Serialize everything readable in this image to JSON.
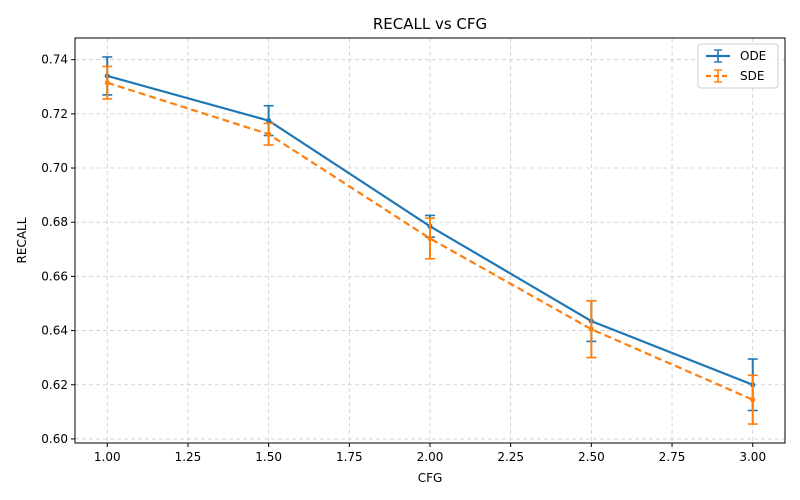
{
  "chart_data": {
    "type": "line",
    "title": "RECALL vs CFG",
    "xlabel": "CFG",
    "ylabel": "RECALL",
    "xlim": [
      0.9,
      3.1
    ],
    "ylim": [
      0.5985,
      0.748
    ],
    "xticks": [
      1.0,
      1.25,
      1.5,
      1.75,
      2.0,
      2.25,
      2.5,
      2.75,
      3.0
    ],
    "xtick_labels": [
      "1.00",
      "1.25",
      "1.50",
      "1.75",
      "2.00",
      "2.25",
      "2.50",
      "2.75",
      "3.00"
    ],
    "yticks": [
      0.6,
      0.62,
      0.64,
      0.66,
      0.68,
      0.7,
      0.72,
      0.74
    ],
    "ytick_labels": [
      "0.60",
      "0.62",
      "0.64",
      "0.66",
      "0.68",
      "0.70",
      "0.72",
      "0.74"
    ],
    "grid": true,
    "legend_position": "top-right",
    "x": [
      1.0,
      1.5,
      2.0,
      2.5,
      3.0
    ],
    "series": [
      {
        "name": "ODE",
        "color": "#1f77b4",
        "linestyle": "solid",
        "values": [
          0.734,
          0.7175,
          0.6785,
          0.6435,
          0.62
        ],
        "errors": [
          0.007,
          0.0055,
          0.004,
          0.0075,
          0.0095
        ]
      },
      {
        "name": "SDE",
        "color": "#ff7f0e",
        "linestyle": "dashed",
        "values": [
          0.7315,
          0.7125,
          0.674,
          0.6405,
          0.6145
        ],
        "errors": [
          0.006,
          0.004,
          0.0075,
          0.0105,
          0.009
        ]
      }
    ]
  }
}
